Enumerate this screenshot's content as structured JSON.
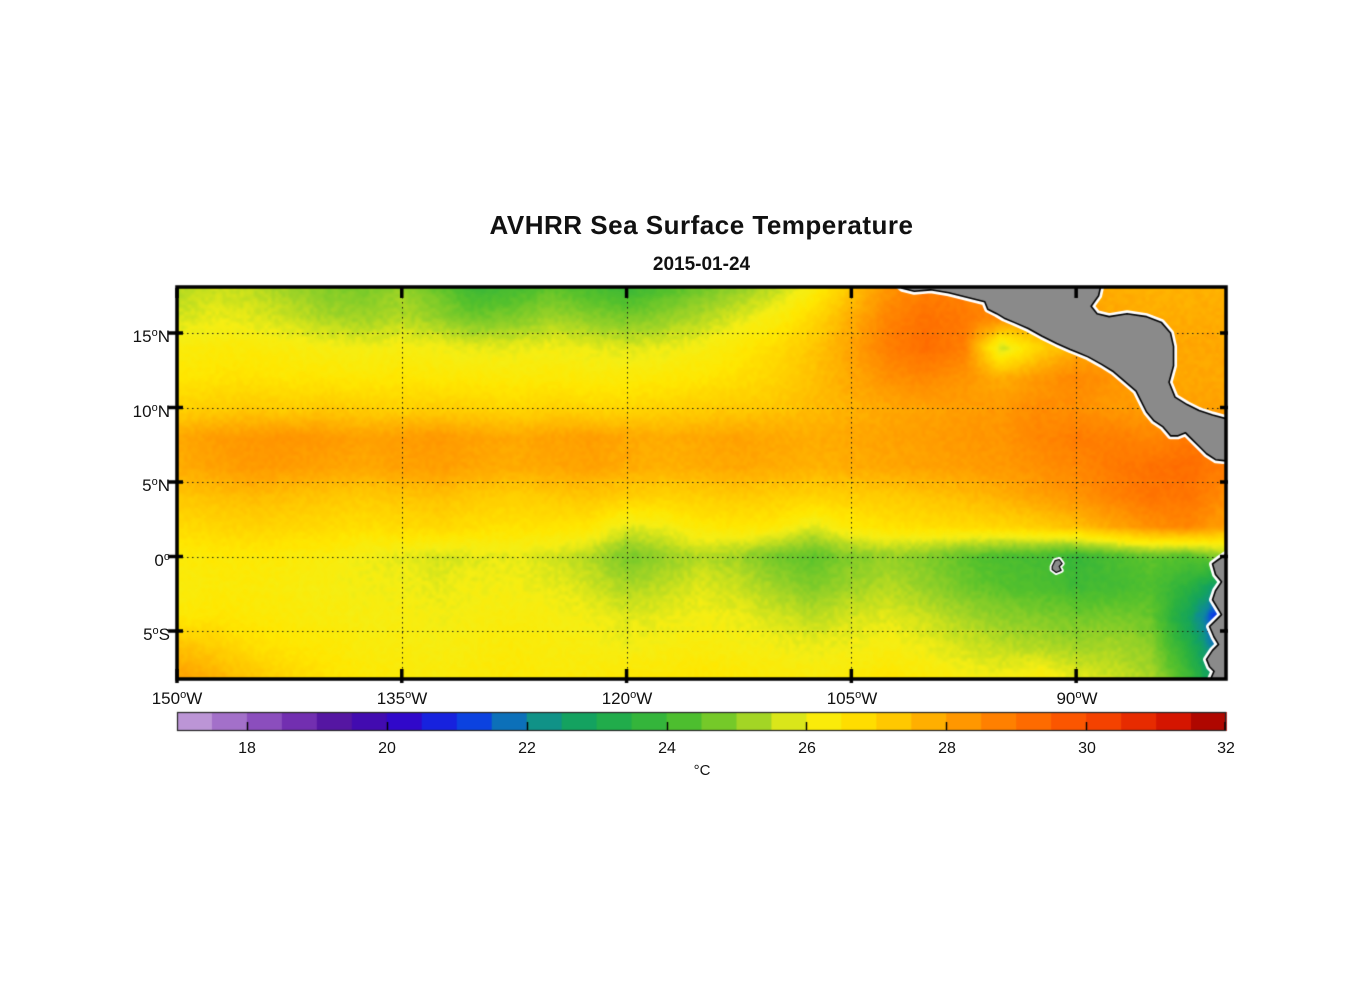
{
  "title": "AVHRR Sea Surface Temperature",
  "subtitle": "2015-01-24",
  "axes": {
    "deg": "o",
    "y_ticks": [
      {
        "v": "15",
        "h": "N"
      },
      {
        "v": "10",
        "h": "N"
      },
      {
        "v": "5",
        "h": "N"
      },
      {
        "v": "0",
        "h": ""
      },
      {
        "v": "5",
        "h": "S"
      }
    ],
    "x_ticks": [
      {
        "v": "150",
        "h": "W"
      },
      {
        "v": "135",
        "h": "W"
      },
      {
        "v": "120",
        "h": "W"
      },
      {
        "v": "105",
        "h": "W"
      },
      {
        "v": "90",
        "h": "W"
      }
    ]
  },
  "colorbar": {
    "unit": "°C",
    "ticks": [
      "18",
      "20",
      "22",
      "24",
      "26",
      "28",
      "30",
      "32"
    ],
    "min": 17,
    "max": 32,
    "step": 0.5
  },
  "chart_data": {
    "type": "heatmap",
    "title": "AVHRR Sea Surface Temperature",
    "subtitle": "2015-01-24",
    "units": "°C",
    "lon_range_w": [
      150,
      80
    ],
    "lat_range": [
      -8.2,
      18.1
    ],
    "grid_lons_w": [
      135,
      120,
      105,
      90
    ],
    "grid_lats": [
      15,
      10,
      5,
      0,
      -5
    ],
    "lon_w": [
      150,
      147.5,
      145,
      142.5,
      140,
      137.5,
      135,
      132.5,
      130,
      127.5,
      125,
      122.5,
      120,
      117.5,
      115,
      112.5,
      110,
      107.5,
      105,
      102.5,
      100,
      97.5,
      95,
      92.5,
      90,
      87.5,
      85,
      82.5,
      80
    ],
    "lat": [
      18,
      16,
      14,
      12,
      10,
      8,
      6,
      4,
      2,
      0,
      -2,
      -4,
      -6,
      -8
    ],
    "sst_c": [
      [
        25.4,
        25.6,
        25.5,
        25.2,
        24.9,
        24.8,
        25.1,
        24.6,
        23.9,
        24.1,
        24.5,
        24.2,
        23.9,
        24.3,
        24.7,
        25.1,
        25.5,
        26.2,
        27.3,
        28.3,
        28.8,
        28.7,
        28.4,
        28.2,
        28.0,
        27.8,
        27.7,
        27.7,
        27.7
      ],
      [
        25.7,
        25.9,
        25.8,
        25.6,
        25.3,
        25.2,
        25.4,
        25.1,
        24.7,
        24.9,
        25.2,
        25.0,
        24.8,
        25.1,
        25.4,
        25.8,
        26.2,
        26.9,
        27.8,
        28.7,
        29.1,
        28.9,
        28.5,
        28.2,
        28.0,
        27.9,
        27.8,
        27.8,
        27.8
      ],
      [
        26.2,
        26.3,
        26.3,
        26.2,
        26.1,
        26.0,
        26.1,
        26.0,
        25.9,
        25.9,
        26.0,
        25.9,
        25.8,
        25.9,
        26.1,
        26.4,
        26.8,
        27.3,
        28.0,
        28.8,
        29.2,
        28.8,
        25.6,
        27.0,
        27.8,
        27.9,
        27.9,
        27.9,
        27.9
      ],
      [
        26.5,
        26.6,
        26.6,
        26.5,
        26.5,
        26.4,
        26.5,
        26.4,
        26.4,
        26.3,
        26.4,
        26.3,
        26.3,
        26.4,
        26.5,
        26.7,
        27.0,
        27.4,
        27.9,
        28.4,
        28.6,
        28.3,
        27.8,
        28.2,
        28.6,
        28.3,
        28.0,
        27.9,
        27.9
      ],
      [
        27.0,
        27.1,
        27.2,
        27.1,
        27.2,
        27.1,
        27.0,
        27.1,
        27.0,
        26.9,
        27.0,
        26.9,
        26.9,
        27.0,
        27.1,
        27.2,
        27.3,
        27.5,
        27.7,
        27.9,
        28.0,
        28.1,
        28.2,
        28.5,
        28.4,
        28.2,
        28.1,
        28.0,
        28.0
      ],
      [
        27.9,
        28.1,
        28.2,
        28.3,
        28.2,
        28.0,
        28.1,
        28.2,
        28.0,
        27.9,
        28.0,
        28.1,
        27.9,
        27.8,
        27.9,
        28.0,
        27.9,
        27.8,
        27.9,
        28.0,
        28.1,
        28.2,
        28.3,
        28.6,
        28.8,
        28.8,
        28.6,
        28.9,
        29.0
      ],
      [
        27.8,
        28.0,
        28.2,
        28.1,
        28.0,
        27.9,
        28.0,
        28.1,
        27.9,
        27.8,
        27.9,
        28.0,
        27.8,
        27.7,
        27.8,
        27.9,
        27.8,
        27.7,
        27.8,
        27.9,
        28.0,
        28.1,
        28.2,
        28.4,
        28.6,
        28.9,
        29.1,
        29.2,
        28.8
      ],
      [
        27.3,
        27.4,
        27.5,
        27.4,
        27.3,
        27.2,
        27.3,
        27.4,
        27.2,
        27.1,
        27.2,
        27.3,
        27.1,
        27.0,
        27.1,
        27.2,
        27.1,
        27.0,
        27.1,
        27.2,
        27.3,
        27.5,
        27.7,
        28.0,
        28.3,
        28.7,
        29.0,
        29.0,
        28.5
      ],
      [
        26.8,
        26.9,
        27.0,
        26.9,
        26.8,
        26.7,
        26.8,
        26.9,
        26.7,
        26.6,
        26.6,
        26.5,
        25.8,
        26.0,
        26.4,
        26.5,
        26.4,
        25.8,
        26.4,
        26.6,
        26.7,
        26.8,
        26.9,
        27.1,
        27.4,
        27.9,
        28.4,
        28.6,
        28.0
      ],
      [
        26.3,
        26.4,
        26.4,
        26.3,
        26.2,
        26.0,
        25.9,
        25.7,
        25.8,
        25.9,
        25.7,
        25.4,
        24.8,
        25.1,
        25.4,
        25.2,
        24.7,
        24.5,
        24.9,
        25.1,
        24.9,
        24.5,
        24.2,
        24.1,
        23.8,
        24.2,
        24.5,
        24.3,
        25.0
      ],
      [
        26.2,
        26.3,
        26.3,
        26.2,
        26.1,
        26.0,
        26.0,
        25.9,
        26.0,
        26.0,
        25.9,
        25.7,
        25.3,
        25.5,
        25.8,
        25.6,
        25.2,
        24.9,
        25.2,
        25.4,
        25.1,
        24.7,
        24.4,
        24.3,
        24.0,
        24.1,
        24.3,
        23.6,
        22.2
      ],
      [
        26.4,
        26.5,
        26.4,
        26.3,
        26.2,
        26.1,
        26.1,
        26.0,
        26.1,
        26.2,
        26.1,
        26.0,
        25.8,
        25.9,
        26.0,
        25.9,
        25.7,
        25.5,
        25.7,
        25.8,
        25.6,
        25.3,
        25.0,
        24.9,
        24.7,
        24.8,
        24.6,
        22.8,
        20.4
      ],
      [
        27.4,
        27.1,
        26.7,
        26.5,
        26.4,
        26.2,
        26.2,
        26.1,
        26.2,
        26.3,
        26.2,
        26.1,
        26.0,
        26.1,
        26.2,
        26.1,
        26.0,
        25.9,
        26.0,
        26.1,
        25.9,
        25.7,
        25.5,
        25.4,
        25.2,
        25.3,
        25.0,
        23.4,
        21.0
      ],
      [
        28.0,
        27.7,
        27.3,
        26.9,
        26.6,
        26.4,
        26.3,
        26.2,
        26.3,
        26.4,
        26.3,
        26.3,
        26.4,
        26.4,
        26.5,
        26.4,
        26.3,
        26.2,
        26.3,
        26.5,
        26.3,
        26.1,
        26.0,
        26.2,
        25.8,
        25.6,
        25.3,
        24.0,
        21.6
      ]
    ],
    "colormap_stops": [
      [
        17.0,
        "#c9a7dc"
      ],
      [
        17.8,
        "#a06cc8"
      ],
      [
        18.6,
        "#7a36b4"
      ],
      [
        19.4,
        "#4d0f9e"
      ],
      [
        20.2,
        "#3305c8"
      ],
      [
        21.0,
        "#0b2fe8"
      ],
      [
        21.5,
        "#0a55d8"
      ],
      [
        22.0,
        "#0e8a9a"
      ],
      [
        22.8,
        "#14a45c"
      ],
      [
        23.6,
        "#2cb23e"
      ],
      [
        24.4,
        "#55c12c"
      ],
      [
        25.2,
        "#9dd326"
      ],
      [
        26.0,
        "#f5ee14"
      ],
      [
        26.5,
        "#ffe700"
      ],
      [
        27.2,
        "#ffcb00"
      ],
      [
        28.0,
        "#ffa200"
      ],
      [
        28.8,
        "#ff7e00"
      ],
      [
        29.6,
        "#fd5c00"
      ],
      [
        30.4,
        "#f23c00"
      ],
      [
        31.2,
        "#d81600"
      ],
      [
        32.0,
        "#9c0000"
      ]
    ],
    "land_color": "#8a8a8a",
    "coast_fringe_color": "#ffffff",
    "coast_outline_color": "#000000",
    "land_polygons_lonw_lat": {
      "central_america": [
        [
          102.1,
          18.4
        ],
        [
          88.3,
          18.4
        ],
        [
          88.5,
          17.5
        ],
        [
          89.0,
          16.8
        ],
        [
          88.6,
          16.3
        ],
        [
          87.8,
          16.1
        ],
        [
          86.6,
          16.3
        ],
        [
          85.3,
          16.1
        ],
        [
          84.3,
          15.7
        ],
        [
          83.7,
          15.0
        ],
        [
          83.5,
          14.1
        ],
        [
          83.5,
          12.8
        ],
        [
          83.8,
          11.7
        ],
        [
          83.4,
          10.7
        ],
        [
          82.6,
          10.2
        ],
        [
          81.8,
          9.8
        ],
        [
          80.9,
          9.5
        ],
        [
          79.8,
          9.2
        ],
        [
          79.8,
          6.4
        ],
        [
          80.7,
          6.5
        ],
        [
          81.3,
          6.9
        ],
        [
          81.8,
          7.4
        ],
        [
          82.3,
          7.9
        ],
        [
          82.7,
          8.3
        ],
        [
          83.2,
          8.1
        ],
        [
          83.7,
          8.1
        ],
        [
          84.2,
          8.7
        ],
        [
          84.8,
          9.1
        ],
        [
          85.3,
          9.7
        ],
        [
          85.7,
          10.5
        ],
        [
          86.0,
          11.1
        ],
        [
          86.7,
          11.7
        ],
        [
          87.5,
          12.4
        ],
        [
          88.3,
          12.9
        ],
        [
          89.2,
          13.4
        ],
        [
          89.9,
          13.7
        ],
        [
          90.4,
          13.9
        ],
        [
          91.3,
          14.3
        ],
        [
          92.3,
          14.8
        ],
        [
          93.2,
          15.3
        ],
        [
          94.1,
          15.7
        ],
        [
          94.8,
          16.0
        ],
        [
          95.3,
          16.3
        ],
        [
          95.9,
          16.6
        ],
        [
          96.1,
          17.1
        ],
        [
          97.3,
          17.4
        ],
        [
          98.5,
          17.7
        ],
        [
          99.7,
          17.9
        ],
        [
          100.8,
          17.8
        ],
        [
          101.6,
          18.0
        ]
      ],
      "south_america": [
        [
          79.6,
          0.5
        ],
        [
          80.0,
          0.14
        ],
        [
          80.5,
          -0.2
        ],
        [
          80.9,
          -0.5
        ],
        [
          80.7,
          -1.2
        ],
        [
          80.3,
          -1.7
        ],
        [
          80.7,
          -2.3
        ],
        [
          80.9,
          -2.9
        ],
        [
          80.6,
          -3.4
        ],
        [
          80.3,
          -3.9
        ],
        [
          80.7,
          -4.3
        ],
        [
          81.1,
          -4.7
        ],
        [
          80.8,
          -5.4
        ],
        [
          80.5,
          -5.9
        ],
        [
          80.9,
          -6.3
        ],
        [
          81.3,
          -6.9
        ],
        [
          81.1,
          -7.4
        ],
        [
          80.8,
          -7.7
        ],
        [
          81.1,
          -8.4
        ],
        [
          79.6,
          -8.4
        ]
      ],
      "galapagos": [
        [
          91.6,
          -0.67
        ],
        [
          91.4,
          -0.27
        ],
        [
          91.13,
          -0.2
        ],
        [
          90.93,
          -0.47
        ],
        [
          91.13,
          -0.67
        ],
        [
          91.0,
          -0.93
        ],
        [
          91.33,
          -1.07
        ],
        [
          91.6,
          -0.87
        ]
      ]
    }
  }
}
